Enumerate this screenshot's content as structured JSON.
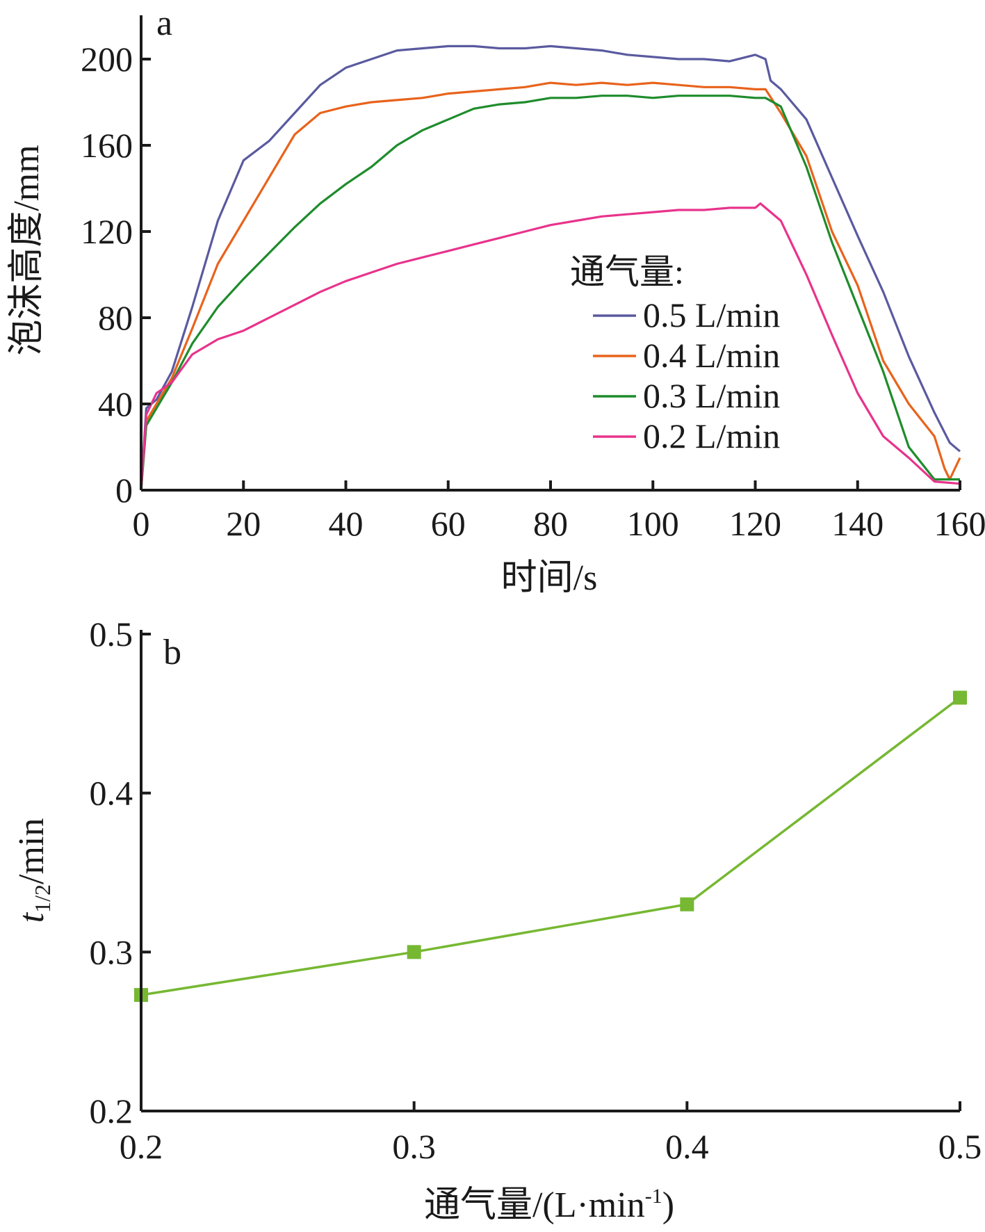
{
  "chart_data": [
    {
      "panel": "a",
      "type": "line",
      "xlabel": "时间/s",
      "ylabel": "泡沫高度/mm",
      "xlim": [
        0,
        160
      ],
      "ylim": [
        0,
        220
      ],
      "xticks": [
        0,
        20,
        40,
        60,
        80,
        100,
        120,
        140,
        160
      ],
      "yticks": [
        0,
        40,
        80,
        120,
        160,
        200
      ],
      "legend_title": "通气量:",
      "legend_position": "right",
      "series": [
        {
          "name": "0.5 L/min",
          "color": "#5a5aa0",
          "x": [
            0,
            1,
            3,
            6,
            10,
            15,
            20,
            25,
            30,
            35,
            40,
            45,
            50,
            55,
            60,
            65,
            70,
            75,
            80,
            85,
            90,
            95,
            100,
            105,
            110,
            115,
            120,
            122,
            123,
            125,
            130,
            135,
            140,
            145,
            150,
            155,
            158,
            160
          ],
          "y": [
            0,
            38,
            42,
            55,
            85,
            125,
            153,
            162,
            175,
            188,
            196,
            200,
            204,
            205,
            206,
            206,
            205,
            205,
            206,
            205,
            204,
            202,
            201,
            200,
            200,
            199,
            202,
            200,
            190,
            186,
            172,
            145,
            118,
            92,
            62,
            36,
            22,
            18
          ]
        },
        {
          "name": "0.4 L/min",
          "color": "#e8631c",
          "x": [
            0,
            1,
            3,
            6,
            10,
            15,
            20,
            25,
            30,
            35,
            40,
            45,
            50,
            55,
            60,
            65,
            70,
            75,
            80,
            85,
            90,
            95,
            100,
            105,
            110,
            115,
            120,
            122,
            125,
            130,
            135,
            140,
            145,
            150,
            155,
            157,
            158,
            160
          ],
          "y": [
            0,
            32,
            40,
            52,
            75,
            105,
            125,
            145,
            165,
            175,
            178,
            180,
            181,
            182,
            184,
            185,
            186,
            187,
            189,
            188,
            189,
            188,
            189,
            188,
            187,
            187,
            186,
            186,
            175,
            155,
            120,
            95,
            60,
            40,
            25,
            10,
            5,
            15
          ]
        },
        {
          "name": "0.3 L/min",
          "color": "#1e8c2c",
          "x": [
            0,
            1,
            3,
            6,
            10,
            15,
            20,
            25,
            30,
            35,
            40,
            45,
            50,
            55,
            60,
            65,
            70,
            75,
            80,
            85,
            90,
            95,
            100,
            105,
            110,
            115,
            120,
            122,
            125,
            130,
            135,
            140,
            145,
            150,
            155,
            160
          ],
          "y": [
            0,
            30,
            38,
            50,
            68,
            85,
            98,
            110,
            122,
            133,
            142,
            150,
            160,
            167,
            172,
            177,
            179,
            180,
            182,
            182,
            183,
            183,
            182,
            183,
            183,
            183,
            182,
            182,
            178,
            150,
            115,
            85,
            55,
            20,
            5,
            5
          ]
        },
        {
          "name": "0.2 L/min",
          "color": "#e8338c",
          "x": [
            0,
            1,
            3,
            6,
            10,
            15,
            20,
            25,
            30,
            35,
            40,
            45,
            50,
            55,
            60,
            65,
            70,
            75,
            80,
            85,
            90,
            95,
            100,
            105,
            110,
            115,
            120,
            121,
            122,
            125,
            130,
            135,
            140,
            145,
            150,
            155,
            160
          ],
          "y": [
            0,
            35,
            45,
            50,
            63,
            70,
            74,
            80,
            86,
            92,
            97,
            101,
            105,
            108,
            111,
            114,
            117,
            120,
            123,
            125,
            127,
            128,
            129,
            130,
            130,
            131,
            131,
            133,
            131,
            125,
            100,
            72,
            45,
            25,
            15,
            4,
            3
          ]
        }
      ]
    },
    {
      "panel": "b",
      "type": "line",
      "xlabel": "通气量/(L·min-1)",
      "ylabel": "t1/2/min",
      "xlim": [
        0.2,
        0.5
      ],
      "ylim": [
        0.2,
        0.5
      ],
      "xticks": [
        "0.2",
        "0.3",
        "0.4",
        "0.5"
      ],
      "yticks": [
        "0.2",
        "0.3",
        "0.4",
        "0.5"
      ],
      "marker": "square",
      "series": [
        {
          "color": "#76b832",
          "x": [
            0.2,
            0.3,
            0.4,
            0.5
          ],
          "y": [
            0.273,
            0.3,
            0.33,
            0.46
          ]
        }
      ]
    }
  ],
  "labels": {
    "panel_a": "a",
    "panel_b": "b",
    "a_xlabel": "时间/s",
    "a_ylabel": "泡沫高度/mm",
    "legend_title": "通气量:",
    "b_xlabel_main": "通气量/(L·min",
    "b_xlabel_sup": "-1",
    "b_xlabel_end": ")",
    "b_ylabel_t": "t",
    "b_ylabel_sub": "1/2",
    "b_ylabel_unit": "/min"
  }
}
